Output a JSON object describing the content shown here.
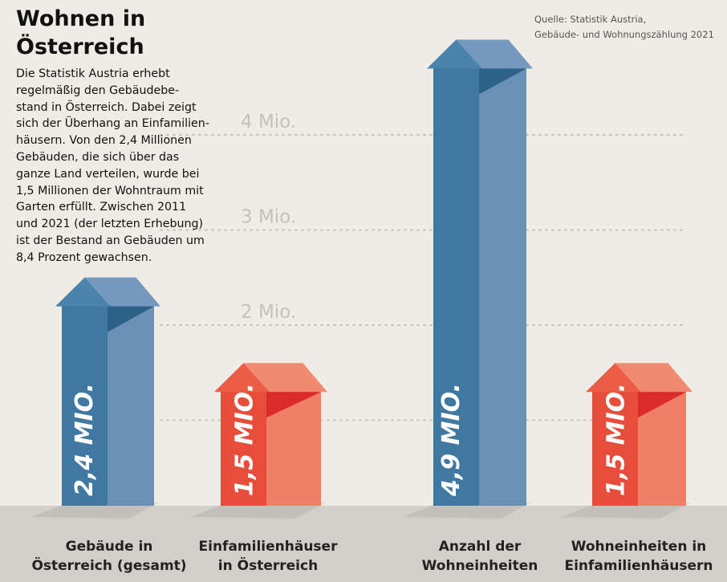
{
  "title": "Wohnen in\nÖsterreich",
  "intro": "Die Statistik Austria erhebt\nregelmäßig den Gebäudebe-\nstand in Österreich. Dabei zeigt\nsich der Überhang an Einfamilien-\nhäusern. Von den 2,4 Millionen\nGebäuden, die sich über das\nganze Land verteilen, wurde bei\n1,5 Millionen der Wohntraum mit\nGarten erfüllt. Zwischen 2011\nund 2021 (der letzten Erhebung)\nist der Bestand an Gebäuden um\n8,4 Prozent gewachsen.",
  "source": "Quelle: Statistik Austria,\nGebäude- und Wohnungszählung 2021",
  "colors": {
    "blue_front": "#3f79a1",
    "blue_side": "#6b90b5",
    "blue_roof_side": "#7599be",
    "blue_roof_front": "#4a83ac",
    "blue_shade": "#2d6188",
    "red_front": "#e84c3b",
    "red_side": "#ef7f66",
    "red_roof_side": "#f08a70",
    "red_roof_front": "#eb5d47",
    "red_shade": "#d92a2c",
    "grid": "#c4c0ba",
    "tick_text": "#c4c0ba",
    "ground": "#d2cfca"
  },
  "chart_data": {
    "type": "bar",
    "title": "Wohnen in Österreich",
    "unit": "Mio.",
    "ylim": [
      0,
      4.9
    ],
    "yticks": [
      {
        "value": 1,
        "label": ""
      },
      {
        "value": 2,
        "label": "2 Mio."
      },
      {
        "value": 3,
        "label": "3 Mio."
      },
      {
        "value": 4,
        "label": "4 Mio."
      }
    ],
    "categories": [
      "Gebäude in\nÖsterreich (gesamt)",
      "Einfamilienhäuser\nin Österreich",
      "Anzahl der\nWohneinheiten",
      "Wohneinheiten in\nEinfamilienhäusern"
    ],
    "values": [
      2.4,
      1.5,
      4.9,
      1.5
    ],
    "value_labels": [
      "2,4 MIO.",
      "1,5 MIO.",
      "4,9 MIO.",
      "1,5 MIO."
    ],
    "color_groups": [
      "blue",
      "red",
      "blue",
      "red"
    ]
  }
}
